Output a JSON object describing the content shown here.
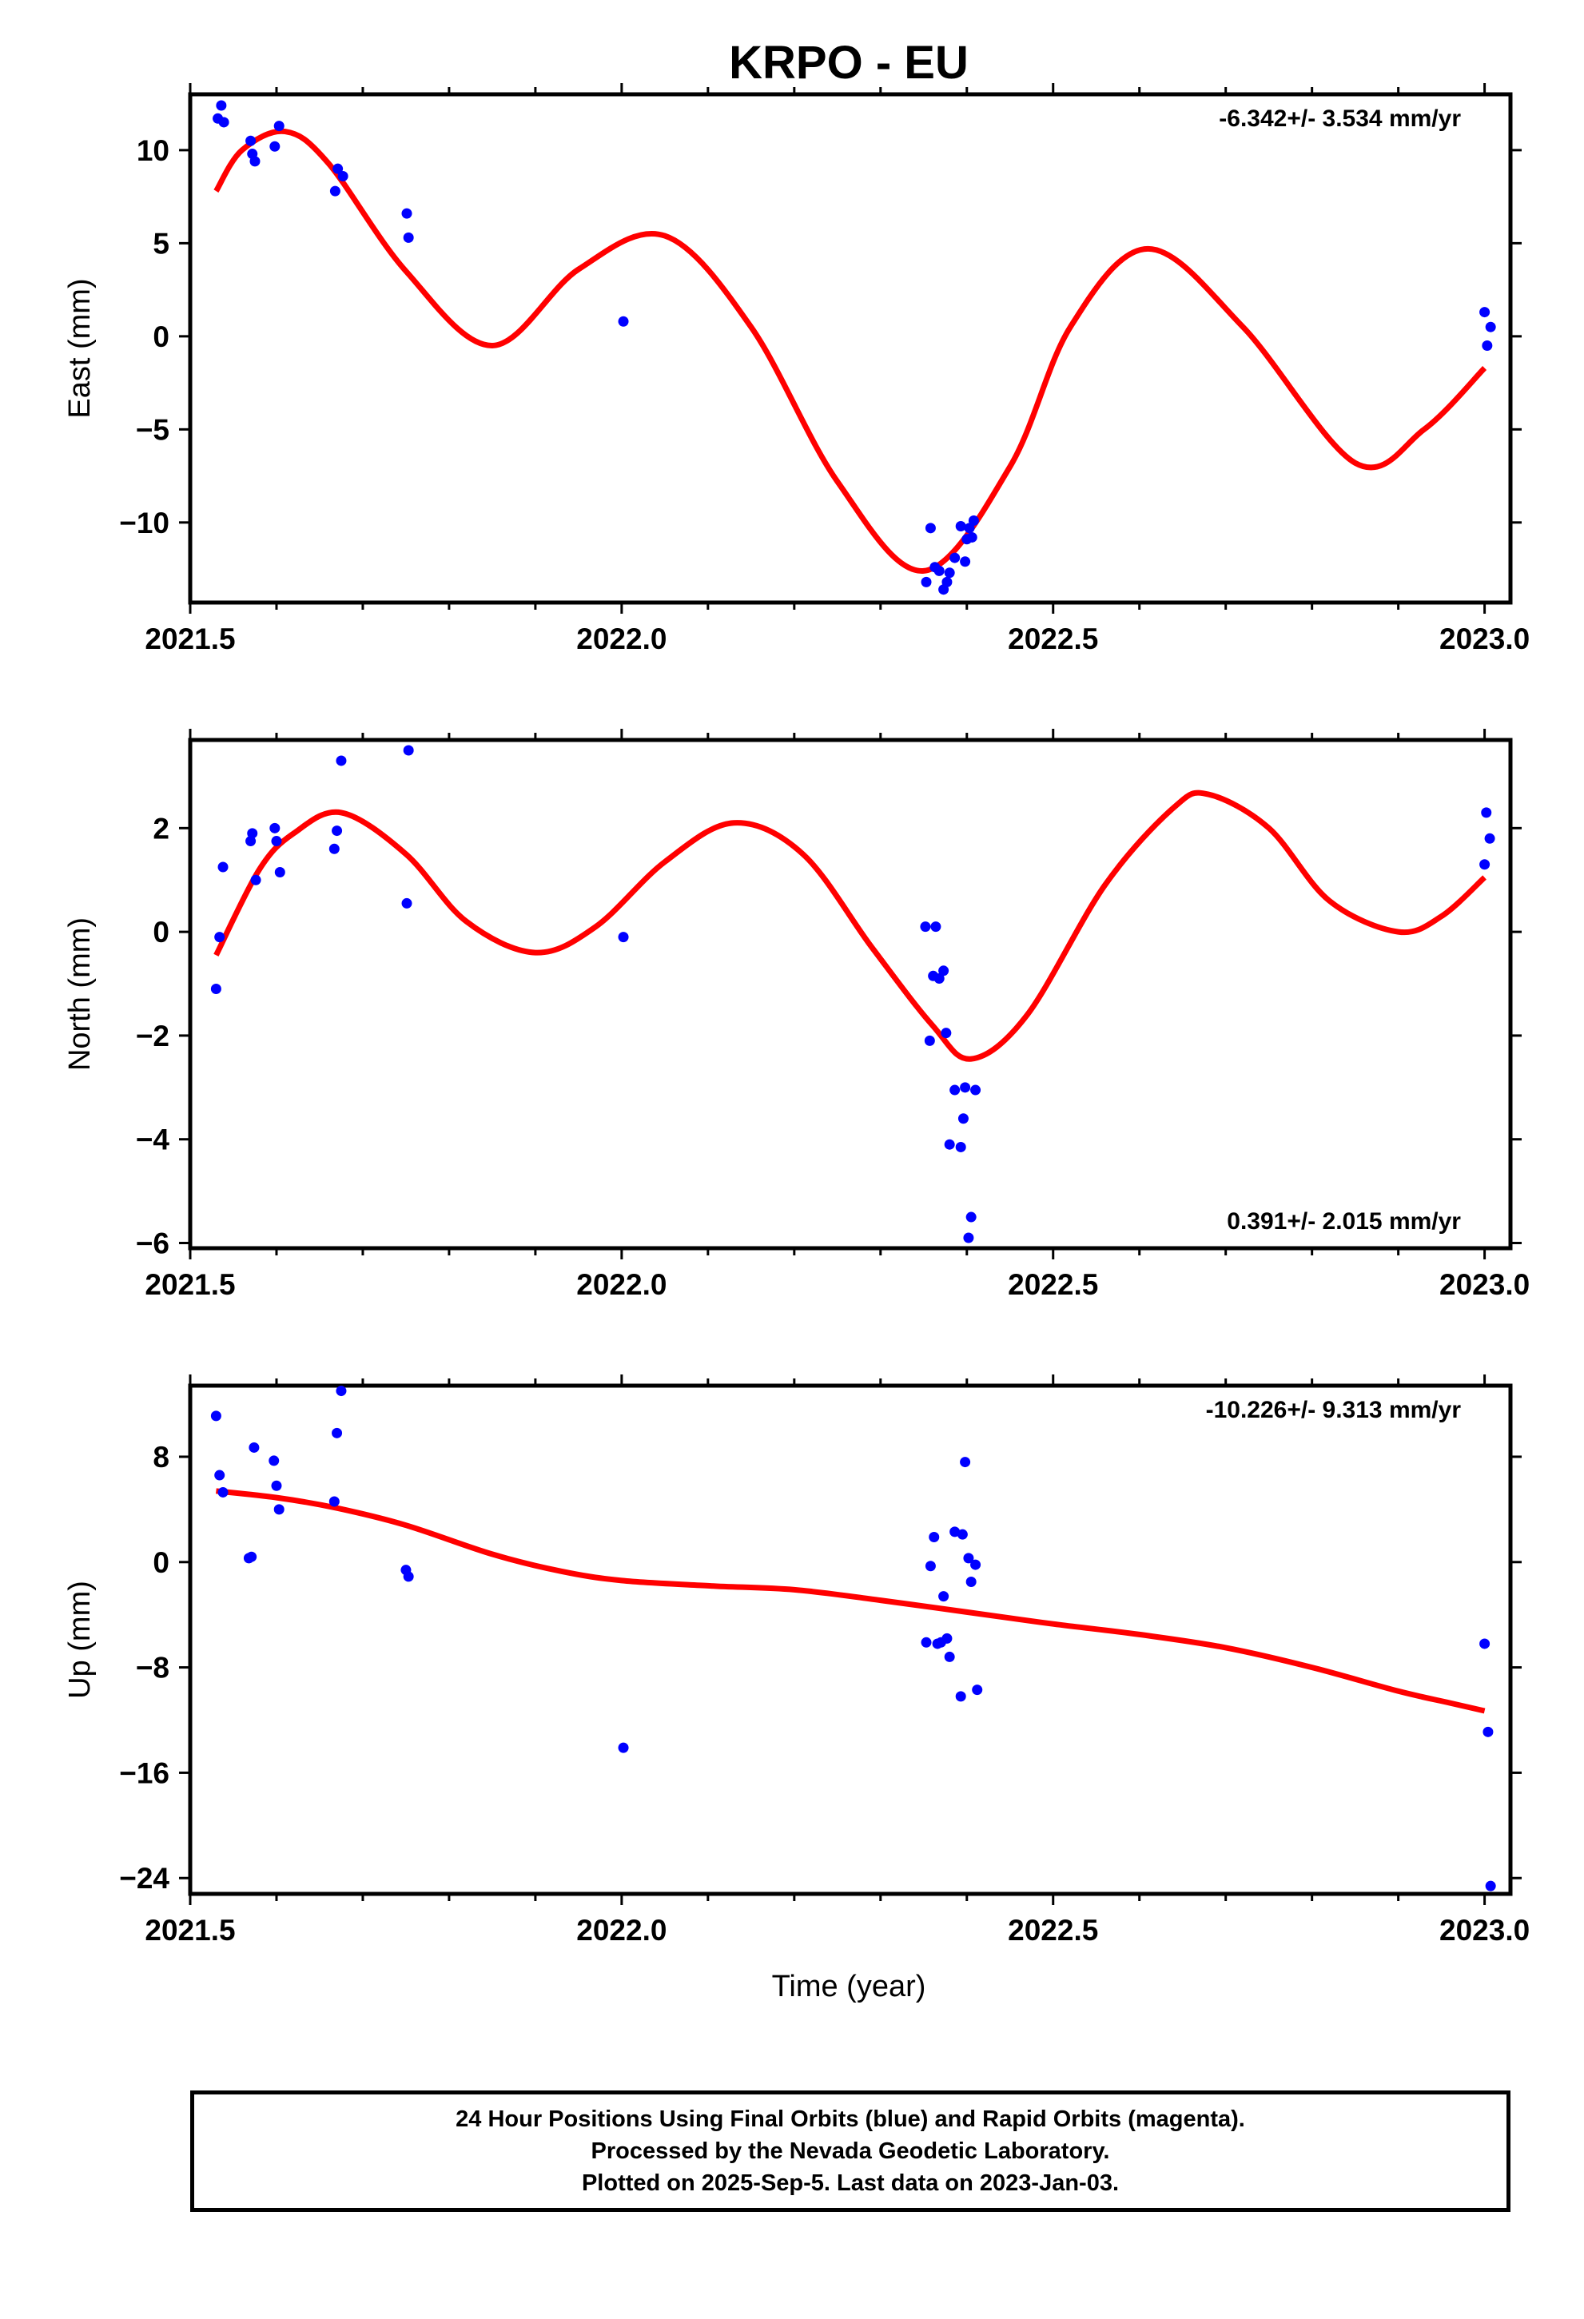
{
  "title": "KRPO - EU",
  "xlabel": "Time (year)",
  "colors": {
    "data_points": "#0000ff",
    "fit_line": "#ff0000"
  },
  "chart_data": [
    {
      "type": "scatter",
      "ylabel": "East (mm)",
      "rate": "-6.342+/- 3.534 mm/yr",
      "xlim": [
        2021.5,
        2023.03
      ],
      "ylim": [
        -14.3,
        13
      ],
      "x_ticks": [
        "2021.5",
        "2022.0",
        "2022.5",
        "2023.0"
      ],
      "y_ticks": [
        10,
        5,
        0,
        -5,
        -10
      ],
      "y_tick_labels": [
        "10",
        "5",
        "0",
        "−5",
        "−10"
      ],
      "points": [
        [
          2021.532,
          11.7
        ],
        [
          2021.536,
          12.4
        ],
        [
          2021.539,
          11.5
        ],
        [
          2021.57,
          10.5
        ],
        [
          2021.572,
          9.8
        ],
        [
          2021.575,
          9.4
        ],
        [
          2021.598,
          10.2
        ],
        [
          2021.603,
          11.3
        ],
        [
          2021.668,
          7.8
        ],
        [
          2021.671,
          9.0
        ],
        [
          2021.677,
          8.6
        ],
        [
          2021.751,
          6.6
        ],
        [
          2021.753,
          5.3
        ],
        [
          2022.002,
          0.8
        ],
        [
          2022.353,
          -13.2
        ],
        [
          2022.358,
          -10.3
        ],
        [
          2022.363,
          -12.4
        ],
        [
          2022.368,
          -12.6
        ],
        [
          2022.373,
          -13.6
        ],
        [
          2022.377,
          -13.2
        ],
        [
          2022.38,
          -12.7
        ],
        [
          2022.386,
          -11.9
        ],
        [
          2022.393,
          -10.2
        ],
        [
          2022.398,
          -12.1
        ],
        [
          2022.4,
          -10.9
        ],
        [
          2022.403,
          -10.3
        ],
        [
          2022.406,
          -10.8
        ],
        [
          2022.408,
          -9.9
        ],
        [
          2023.0,
          1.3
        ],
        [
          2023.003,
          -0.5
        ],
        [
          2023.007,
          0.5
        ]
      ],
      "fit": [
        [
          2021.53,
          7.8
        ],
        [
          2021.56,
          10.0
        ],
        [
          2021.61,
          11.0
        ],
        [
          2021.66,
          9.3
        ],
        [
          2021.75,
          3.5
        ],
        [
          2021.85,
          -0.5
        ],
        [
          2021.95,
          3.6
        ],
        [
          2022.05,
          5.4
        ],
        [
          2022.15,
          0.5
        ],
        [
          2022.25,
          -7.8
        ],
        [
          2022.35,
          -12.6
        ],
        [
          2022.45,
          -7.0
        ],
        [
          2022.52,
          0.5
        ],
        [
          2022.61,
          4.7
        ],
        [
          2022.72,
          0.5
        ],
        [
          2022.85,
          -6.8
        ],
        [
          2022.93,
          -5.0
        ],
        [
          2023.0,
          -1.7
        ]
      ]
    },
    {
      "type": "scatter",
      "ylabel": "North (mm)",
      "rate": "0.391+/- 2.015 mm/yr",
      "xlim": [
        2021.5,
        2023.03
      ],
      "ylim": [
        -6.1,
        3.7
      ],
      "x_ticks": [
        "2021.5",
        "2022.0",
        "2022.5",
        "2023.0"
      ],
      "y_ticks": [
        2,
        0,
        -2,
        -4,
        -6
      ],
      "y_tick_labels": [
        "2",
        "0",
        "−2",
        "−4",
        "−6"
      ],
      "points": [
        [
          2021.53,
          -1.1
        ],
        [
          2021.534,
          -0.1
        ],
        [
          2021.538,
          1.25
        ],
        [
          2021.57,
          1.75
        ],
        [
          2021.572,
          1.9
        ],
        [
          2021.576,
          1.0
        ],
        [
          2021.598,
          2.0
        ],
        [
          2021.6,
          1.75
        ],
        [
          2021.604,
          1.15
        ],
        [
          2021.667,
          1.6
        ],
        [
          2021.67,
          1.95
        ],
        [
          2021.675,
          3.3
        ],
        [
          2021.751,
          0.55
        ],
        [
          2021.753,
          3.5
        ],
        [
          2022.002,
          -0.1
        ],
        [
          2022.352,
          0.1
        ],
        [
          2022.357,
          -2.1
        ],
        [
          2022.361,
          -0.85
        ],
        [
          2022.364,
          0.1
        ],
        [
          2022.368,
          -0.9
        ],
        [
          2022.373,
          -0.75
        ],
        [
          2022.376,
          -1.95
        ],
        [
          2022.38,
          -4.1
        ],
        [
          2022.386,
          -3.05
        ],
        [
          2022.393,
          -4.15
        ],
        [
          2022.396,
          -3.6
        ],
        [
          2022.398,
          -3.0
        ],
        [
          2022.402,
          -5.9
        ],
        [
          2022.405,
          -5.5
        ],
        [
          2022.41,
          -3.05
        ],
        [
          2023.0,
          1.3
        ],
        [
          2023.002,
          2.3
        ],
        [
          2023.006,
          1.8
        ]
      ],
      "fit": [
        [
          2021.53,
          -0.45
        ],
        [
          2021.58,
          1.2
        ],
        [
          2021.62,
          1.9
        ],
        [
          2021.675,
          2.3
        ],
        [
          2021.75,
          1.5
        ],
        [
          2021.82,
          0.2
        ],
        [
          2021.9,
          -0.4
        ],
        [
          2021.97,
          0.1
        ],
        [
          2022.05,
          1.35
        ],
        [
          2022.13,
          2.1
        ],
        [
          2022.21,
          1.5
        ],
        [
          2022.29,
          -0.3
        ],
        [
          2022.36,
          -1.8
        ],
        [
          2022.405,
          -2.45
        ],
        [
          2022.47,
          -1.6
        ],
        [
          2022.56,
          0.9
        ],
        [
          2022.64,
          2.4
        ],
        [
          2022.68,
          2.65
        ],
        [
          2022.75,
          2.0
        ],
        [
          2022.82,
          0.6
        ],
        [
          2022.9,
          0.0
        ],
        [
          2022.95,
          0.3
        ],
        [
          2023.0,
          1.05
        ]
      ]
    },
    {
      "type": "scatter",
      "ylabel": "Up (mm)",
      "rate": "-10.226+/- 9.313 mm/yr",
      "xlim": [
        2021.5,
        2023.03
      ],
      "ylim": [
        -25.2,
        13.4
      ],
      "x_ticks": [
        "2021.5",
        "2022.0",
        "2022.5",
        "2023.0"
      ],
      "y_ticks": [
        8,
        0,
        -8,
        -16,
        -24
      ],
      "y_tick_labels": [
        "8",
        "0",
        "−8",
        "−16",
        "−24"
      ],
      "points": [
        [
          2021.53,
          11.1
        ],
        [
          2021.534,
          6.6
        ],
        [
          2021.538,
          5.3
        ],
        [
          2021.568,
          0.3
        ],
        [
          2021.571,
          0.4
        ],
        [
          2021.574,
          8.7
        ],
        [
          2021.597,
          7.7
        ],
        [
          2021.6,
          5.8
        ],
        [
          2021.603,
          4.0
        ],
        [
          2021.667,
          4.6
        ],
        [
          2021.67,
          9.8
        ],
        [
          2021.675,
          13.0
        ],
        [
          2021.75,
          -0.6
        ],
        [
          2021.753,
          -1.1
        ],
        [
          2022.002,
          -14.1
        ],
        [
          2022.353,
          -6.1
        ],
        [
          2022.358,
          -0.3
        ],
        [
          2022.362,
          1.9
        ],
        [
          2022.366,
          -6.2
        ],
        [
          2022.37,
          -6.1
        ],
        [
          2022.373,
          -2.6
        ],
        [
          2022.377,
          -5.8
        ],
        [
          2022.38,
          -7.2
        ],
        [
          2022.386,
          2.3
        ],
        [
          2022.393,
          -10.2
        ],
        [
          2022.395,
          2.1
        ],
        [
          2022.398,
          7.6
        ],
        [
          2022.402,
          0.3
        ],
        [
          2022.405,
          -1.5
        ],
        [
          2022.41,
          -0.2
        ],
        [
          2022.412,
          -9.7
        ],
        [
          2023.0,
          -6.2
        ],
        [
          2023.004,
          -12.9
        ],
        [
          2023.007,
          -24.6
        ]
      ],
      "fit": [
        [
          2021.53,
          5.4
        ],
        [
          2021.6,
          4.9
        ],
        [
          2021.67,
          4.1
        ],
        [
          2021.75,
          2.8
        ],
        [
          2021.85,
          0.6
        ],
        [
          2021.93,
          -0.7
        ],
        [
          2022.0,
          -1.4
        ],
        [
          2022.1,
          -1.8
        ],
        [
          2022.2,
          -2.1
        ],
        [
          2022.3,
          -2.9
        ],
        [
          2022.4,
          -3.8
        ],
        [
          2022.5,
          -4.7
        ],
        [
          2022.6,
          -5.5
        ],
        [
          2022.7,
          -6.5
        ],
        [
          2022.8,
          -8.0
        ],
        [
          2022.9,
          -9.8
        ],
        [
          2022.96,
          -10.7
        ],
        [
          2023.0,
          -11.3
        ]
      ]
    }
  ],
  "footer": {
    "line1": "24 Hour Positions Using Final Orbits (blue) and Rapid Orbits (magenta).",
    "line2": "Processed by the Nevada Geodetic Laboratory.",
    "line3": "Plotted on 2025-Sep-5. Last data on 2023-Jan-03."
  }
}
